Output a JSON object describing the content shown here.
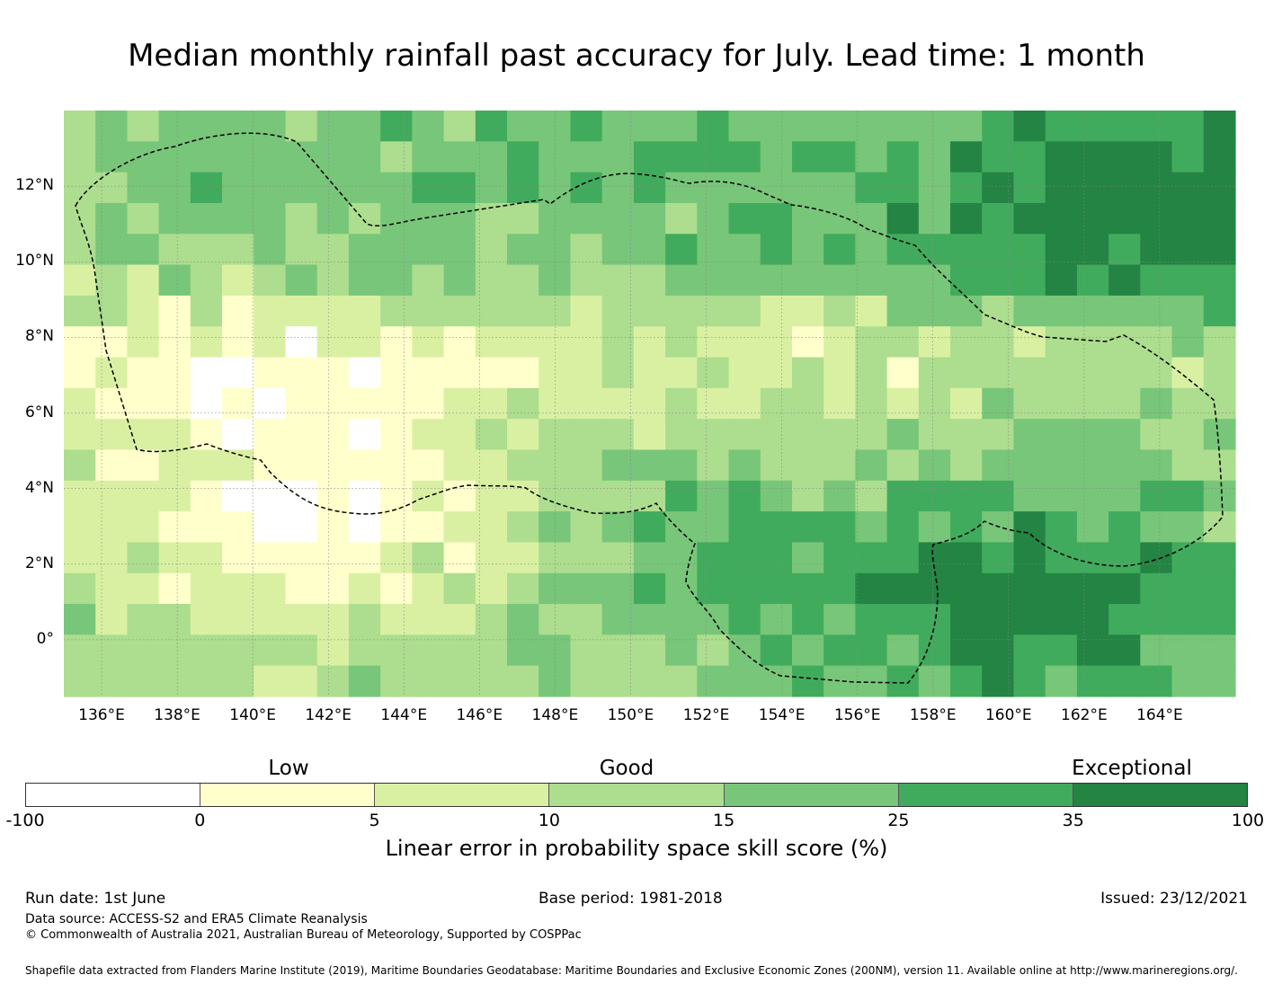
{
  "title": "Median monthly rainfall past accuracy for July. Lead time: 1 month",
  "map": {
    "lon_range": [
      135,
      166
    ],
    "lat_range": [
      -1.5,
      14
    ],
    "lon_ticks": [
      "136°E",
      "138°E",
      "140°E",
      "142°E",
      "144°E",
      "146°E",
      "148°E",
      "150°E",
      "152°E",
      "154°E",
      "156°E",
      "158°E",
      "160°E",
      "162°E",
      "164°E"
    ],
    "lat_ticks": [
      "12°N",
      "10°N",
      "8°N",
      "6°N",
      "4°N",
      "2°N",
      "0°"
    ],
    "grid": true,
    "eez_boundary": "dashed",
    "layer": "Linear error in probability space skill score (%)"
  },
  "legend": {
    "categories": [
      {
        "label": "Low"
      },
      {
        "label": "Good"
      },
      {
        "label": "Exceptional"
      }
    ],
    "ticks": [
      "-100",
      "0",
      "5",
      "10",
      "15",
      "25",
      "35",
      "100"
    ],
    "colors": [
      "#ffffff",
      "#ffffcc",
      "#d9f0a3",
      "#addd8e",
      "#78c679",
      "#41ab5d",
      "#238443"
    ],
    "label": "Linear error in probability space skill score (%)"
  },
  "footer": {
    "run_date": "Run date: 1st June",
    "base_period": "Base period: 1981-2018",
    "issued": "Issued: 23/12/2021",
    "data_source": "Data source: ACCESS-S2 and ERA5 Climate Reanalysis",
    "copyright": "© Commonwealth of Australia 2021, Australian Bureau of Meteorology, Supported by COSPPac",
    "shapefile": "Shapefile data extracted from Flanders Marine Institute (2019), Maritime Boundaries Geodatabase: Maritime Boundaries and Exclusive Economic Zones (200NM), version 11. Available online at http://www.marineregions.org/."
  }
}
